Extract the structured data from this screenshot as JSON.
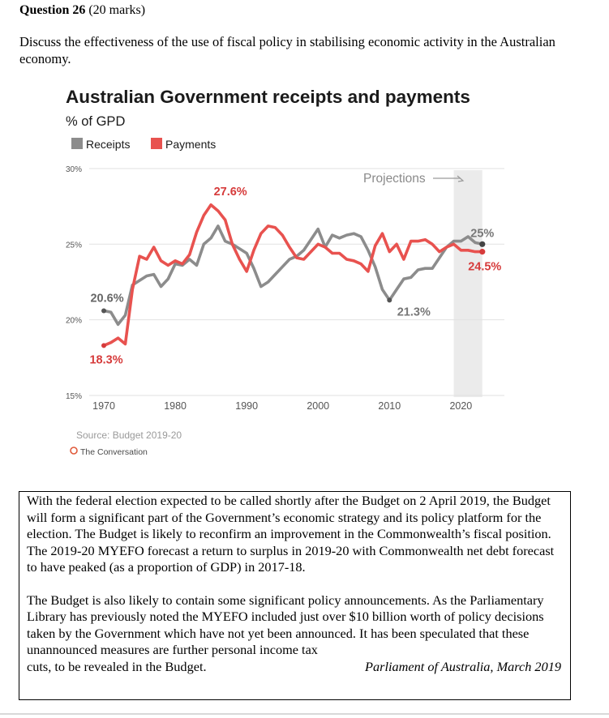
{
  "question": {
    "label": "Question 26",
    "marks": "(20 marks)",
    "prompt": "Discuss the effectiveness of the use of fiscal policy in stabilising economic activity in the Australian economy."
  },
  "chart_data": {
    "type": "line",
    "title": "Australian Government receipts and payments",
    "subtitle": "% of GPD",
    "xlim": [
      1965,
      2027
    ],
    "ylim": [
      15,
      30
    ],
    "y_ticks": [
      "15%",
      "20%",
      "25%",
      "30%"
    ],
    "x_ticks": [
      "1970",
      "1980",
      "1990",
      "2000",
      "2010",
      "2020"
    ],
    "grid": true,
    "legend_position": "top-left",
    "projection_band": {
      "from": 2019,
      "to": 2023,
      "label": "Projections"
    },
    "series": [
      {
        "name": "Receipts",
        "color": "#8c8c8c",
        "x": [
          1970,
          1971,
          1972,
          1973,
          1974,
          1975,
          1976,
          1977,
          1978,
          1979,
          1980,
          1981,
          1982,
          1983,
          1984,
          1985,
          1986,
          1987,
          1988,
          1989,
          1990,
          1991,
          1992,
          1993,
          1994,
          1995,
          1996,
          1997,
          1998,
          1999,
          2000,
          2001,
          2002,
          2003,
          2004,
          2005,
          2006,
          2007,
          2008,
          2009,
          2010,
          2011,
          2012,
          2013,
          2014,
          2015,
          2016,
          2017,
          2018,
          2019,
          2020,
          2021,
          2022,
          2023
        ],
        "values": [
          20.6,
          20.5,
          19.7,
          20.3,
          22.3,
          22.6,
          22.9,
          23.0,
          22.2,
          22.7,
          23.7,
          23.6,
          24.0,
          23.6,
          25.0,
          25.4,
          26.2,
          25.2,
          25.0,
          24.7,
          24.4,
          23.4,
          22.2,
          22.5,
          23.0,
          23.5,
          24.0,
          24.2,
          24.6,
          25.3,
          26.0,
          24.8,
          25.6,
          25.4,
          25.6,
          25.7,
          25.5,
          24.6,
          23.5,
          22.0,
          21.3,
          22.0,
          22.7,
          22.8,
          23.3,
          23.4,
          23.4,
          24.1,
          24.8,
          25.2,
          25.2,
          25.5,
          25.1,
          25.0
        ],
        "labels": [
          {
            "x": 1970,
            "text": "20.6%"
          },
          {
            "x": 2010,
            "text": "21.3%"
          },
          {
            "x": 2023,
            "text": "25%"
          }
        ]
      },
      {
        "name": "Payments",
        "color": "#e8524f",
        "x": [
          1970,
          1971,
          1972,
          1973,
          1974,
          1975,
          1976,
          1977,
          1978,
          1979,
          1980,
          1981,
          1982,
          1983,
          1984,
          1985,
          1986,
          1987,
          1988,
          1989,
          1990,
          1991,
          1992,
          1993,
          1994,
          1995,
          1996,
          1997,
          1998,
          1999,
          2000,
          2001,
          2002,
          2003,
          2004,
          2005,
          2006,
          2007,
          2008,
          2009,
          2010,
          2011,
          2012,
          2013,
          2014,
          2015,
          2016,
          2017,
          2018,
          2019,
          2020,
          2021,
          2022,
          2023
        ],
        "values": [
          18.3,
          18.5,
          18.8,
          18.4,
          22.0,
          24.2,
          24.0,
          24.8,
          23.9,
          23.6,
          23.9,
          23.7,
          24.3,
          25.8,
          26.9,
          27.6,
          27.2,
          26.6,
          25.0,
          24.0,
          23.2,
          24.6,
          25.7,
          26.2,
          26.1,
          25.6,
          24.8,
          24.1,
          24.0,
          24.5,
          25.0,
          24.8,
          24.4,
          24.4,
          24.0,
          23.9,
          23.7,
          23.2,
          24.9,
          25.7,
          24.5,
          25.0,
          24.0,
          25.2,
          25.2,
          25.3,
          25.0,
          24.5,
          24.8,
          25.0,
          24.6,
          24.6,
          24.5,
          24.5
        ],
        "labels": [
          {
            "x": 1970,
            "text": "18.3%"
          },
          {
            "x": 1985,
            "text": "27.6%"
          },
          {
            "x": 2023,
            "text": "24.5%"
          }
        ]
      }
    ],
    "source": "Source: Budget 2019-20",
    "credit": "The Conversation"
  },
  "extract": {
    "paragraph_1": "With the federal election expected to be called shortly after the Budget on 2 April 2019, the Budget will form a significant part of the Government’s economic strategy and its policy platform for the election. The Budget is likely to reconfirm an improvement in the Commonwealth’s fiscal position. The 2019-20 MYEFO forecast a return to surplus in 2019-20 with Commonwealth net debt forecast to have peaked (as a proportion of GDP) in 2017-18.",
    "paragraph_2": "The Budget is also likely to contain some significant policy announcements. As the Parliamentary Library has previously noted the MYEFO included just over $10 billion worth of policy decisions taken by the Government which have not yet been announced. It has been speculated that these unannounced measures are further personal income tax",
    "paragraph_2_end": "cuts, to be revealed in the Budget.",
    "source": "Parliament of Australia, March 2019"
  }
}
